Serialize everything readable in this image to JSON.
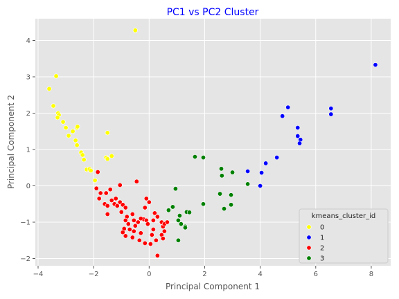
{
  "chart_data": {
    "type": "scatter",
    "title": "PC1 vs PC2 Cluster",
    "xlabel": "Principal Component 1",
    "ylabel": "Principal Component 2",
    "xlim": [
      -4.1,
      8.7
    ],
    "ylim": [
      -2.2,
      4.6
    ],
    "xticks": [
      -4,
      -2,
      0,
      2,
      4,
      6,
      8
    ],
    "yticks": [
      -2,
      -1,
      0,
      1,
      2,
      3,
      4
    ],
    "grid": true,
    "legend": {
      "title": "kmeans_cluster_id",
      "placement": "bottom-right"
    },
    "series": [
      {
        "name": "0",
        "color": "#ffff00",
        "points": [
          [
            -0.5,
            4.28
          ],
          [
            -3.6,
            2.67
          ],
          [
            -3.35,
            3.02
          ],
          [
            -3.45,
            2.2
          ],
          [
            -3.28,
            2.0
          ],
          [
            -3.25,
            1.95
          ],
          [
            -3.3,
            1.88
          ],
          [
            -3.1,
            1.76
          ],
          [
            -3.0,
            1.6
          ],
          [
            -2.75,
            1.5
          ],
          [
            -2.6,
            1.6
          ],
          [
            -2.58,
            1.63
          ],
          [
            -2.9,
            1.38
          ],
          [
            -2.65,
            1.25
          ],
          [
            -2.6,
            1.12
          ],
          [
            -1.5,
            1.46
          ],
          [
            -2.45,
            0.92
          ],
          [
            -2.4,
            0.85
          ],
          [
            -2.35,
            0.72
          ],
          [
            -2.25,
            0.45
          ],
          [
            -2.15,
            0.46
          ],
          [
            -2.1,
            0.42
          ],
          [
            -1.55,
            0.78
          ],
          [
            -1.5,
            0.74
          ],
          [
            -1.35,
            0.82
          ],
          [
            -1.95,
            0.15
          ]
        ]
      },
      {
        "name": "1",
        "color": "#0000ff",
        "points": [
          [
            8.15,
            3.33
          ],
          [
            5.0,
            2.16
          ],
          [
            4.8,
            1.92
          ],
          [
            6.55,
            2.13
          ],
          [
            6.55,
            1.97
          ],
          [
            5.35,
            1.6
          ],
          [
            5.35,
            1.37
          ],
          [
            5.45,
            1.27
          ],
          [
            5.42,
            1.17
          ],
          [
            4.6,
            0.78
          ],
          [
            4.2,
            0.62
          ],
          [
            3.55,
            0.4
          ],
          [
            4.05,
            0.36
          ],
          [
            4.0,
            0.0
          ]
        ]
      },
      {
        "name": "2",
        "color": "#ff0000",
        "points": [
          [
            -1.85,
            0.38
          ],
          [
            -1.9,
            -0.07
          ],
          [
            -1.75,
            -0.2
          ],
          [
            -1.8,
            -0.35
          ],
          [
            -1.55,
            -0.2
          ],
          [
            -1.4,
            -0.1
          ],
          [
            -1.05,
            0.02
          ],
          [
            -1.6,
            -0.5
          ],
          [
            -1.5,
            -0.55
          ],
          [
            -1.35,
            -0.4
          ],
          [
            -1.2,
            -0.35
          ],
          [
            -1.25,
            -0.5
          ],
          [
            -1.15,
            -0.55
          ],
          [
            -1.05,
            -0.45
          ],
          [
            -0.95,
            -0.52
          ],
          [
            -1.5,
            -0.78
          ],
          [
            -0.45,
            0.12
          ],
          [
            -0.85,
            -0.6
          ],
          [
            -1.0,
            -0.72
          ],
          [
            -0.8,
            -0.85
          ],
          [
            -0.6,
            -0.78
          ],
          [
            -0.55,
            -0.95
          ],
          [
            -0.4,
            -1.0
          ],
          [
            -0.1,
            -0.35
          ],
          [
            0.0,
            -0.45
          ],
          [
            -0.15,
            -0.6
          ],
          [
            -0.2,
            -0.92
          ],
          [
            -0.3,
            -0.9
          ],
          [
            -0.1,
            -0.95
          ],
          [
            -0.05,
            -1.05
          ],
          [
            -0.5,
            -1.1
          ],
          [
            -0.55,
            -1.25
          ],
          [
            -0.3,
            -1.3
          ],
          [
            -0.35,
            -1.5
          ],
          [
            -0.15,
            -1.58
          ],
          [
            0.05,
            -1.6
          ],
          [
            0.1,
            -1.35
          ],
          [
            0.15,
            -1.2
          ],
          [
            0.25,
            -1.5
          ],
          [
            0.3,
            -1.92
          ],
          [
            0.2,
            -0.75
          ],
          [
            0.3,
            -0.85
          ],
          [
            0.15,
            -0.95
          ],
          [
            0.45,
            -1.0
          ],
          [
            0.5,
            -1.12
          ],
          [
            0.55,
            -1.25
          ],
          [
            0.45,
            -1.35
          ],
          [
            0.5,
            -1.45
          ],
          [
            0.55,
            -1.05
          ],
          [
            0.65,
            -1.0
          ],
          [
            -0.85,
            -0.95
          ],
          [
            -0.75,
            -1.05
          ],
          [
            -0.7,
            -1.2
          ],
          [
            -0.9,
            -1.18
          ],
          [
            -0.95,
            -1.28
          ],
          [
            -0.85,
            -1.38
          ],
          [
            -0.6,
            -1.42
          ]
        ]
      },
      {
        "name": "3",
        "color": "#008000",
        "points": [
          [
            1.65,
            0.8
          ],
          [
            1.95,
            0.78
          ],
          [
            0.95,
            -0.08
          ],
          [
            2.6,
            0.47
          ],
          [
            2.62,
            0.28
          ],
          [
            3.0,
            0.37
          ],
          [
            3.55,
            0.05
          ],
          [
            2.55,
            -0.22
          ],
          [
            2.95,
            -0.25
          ],
          [
            1.95,
            -0.5
          ],
          [
            2.95,
            -0.52
          ],
          [
            2.7,
            -0.63
          ],
          [
            0.85,
            -0.58
          ],
          [
            0.7,
            -0.67
          ],
          [
            1.1,
            -0.82
          ],
          [
            1.05,
            -0.95
          ],
          [
            1.35,
            -0.72
          ],
          [
            1.45,
            -0.73
          ],
          [
            1.15,
            -1.05
          ],
          [
            1.3,
            -1.12
          ],
          [
            1.3,
            -1.15
          ],
          [
            1.05,
            -1.5
          ]
        ]
      }
    ]
  }
}
